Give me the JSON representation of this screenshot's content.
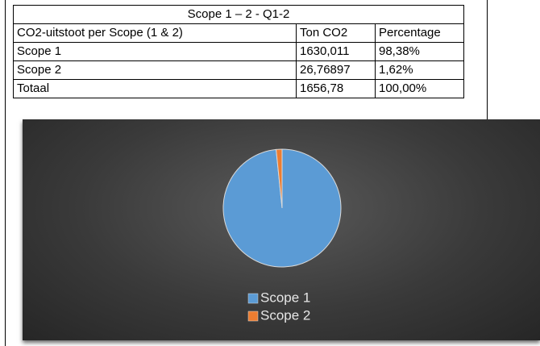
{
  "table": {
    "title": "Scope 1 – 2 -  Q1-2",
    "header": [
      "CO2-uitstoot per Scope (1 & 2)",
      "Ton CO2",
      "Percentage"
    ],
    "rows": [
      [
        "Scope 1",
        "1630,011",
        "98,38%"
      ],
      [
        "Scope 2",
        "26,76897",
        "1,62%"
      ],
      [
        "Totaal",
        "1656,78",
        "100,00%"
      ]
    ]
  },
  "chart_data": {
    "type": "pie",
    "categories": [
      "Scope 1",
      "Scope 2"
    ],
    "values": [
      98.38,
      1.62
    ],
    "colors": [
      "#5b9bd5",
      "#ed7d31"
    ],
    "legend": "bottom"
  }
}
